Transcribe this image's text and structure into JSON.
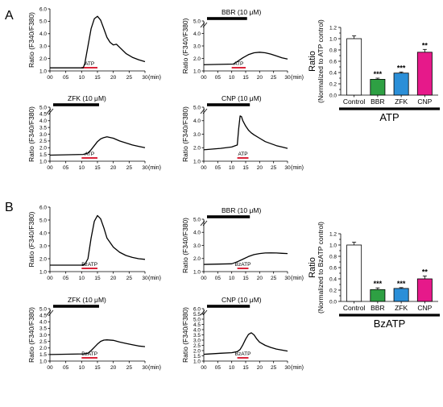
{
  "panel_labels": [
    "A",
    "B"
  ],
  "colors": {
    "control": "#ffffff",
    "BBR": "#2ea043",
    "ZFK": "#2b8fd8",
    "CNP": "#e6198a",
    "stim": "#d9253a",
    "drug": "#000000"
  },
  "chart_data": [
    {
      "type": "line",
      "panel": "A",
      "pos": 0,
      "ylabel": "Ratio (F340/F380)",
      "xunit": "(min)",
      "yticks": [
        "1.0",
        "2.0",
        "3.0",
        "4.0",
        "5.0",
        "6.0"
      ],
      "ylim": [
        1.0,
        6.0
      ],
      "xticks": [
        "00",
        "05",
        "10",
        "15",
        "20",
        "25",
        "30"
      ],
      "xlim": [
        0,
        30
      ],
      "drug_label": "",
      "stim_label": "ATP",
      "stim_range": [
        10,
        15
      ],
      "x": [
        0,
        10.5,
        11,
        12,
        13,
        14,
        15,
        16,
        17,
        18,
        19,
        20,
        21,
        22,
        24,
        26,
        28,
        30
      ],
      "y": [
        1.25,
        1.25,
        1.6,
        3.0,
        4.4,
        5.2,
        5.4,
        5.1,
        4.4,
        3.7,
        3.3,
        3.1,
        3.15,
        2.9,
        2.4,
        2.1,
        1.9,
        1.75
      ]
    },
    {
      "type": "line",
      "panel": "A",
      "pos": 1,
      "ylabel": "Ratio (F340/F380)",
      "xunit": "(min)",
      "yticks": [
        "1.0",
        "2.0",
        "3.0",
        "4.0",
        "5.0"
      ],
      "ylim": [
        1.0,
        5.0
      ],
      "xticks": [
        "00",
        "05",
        "10",
        "15",
        "20",
        "25",
        "30"
      ],
      "xlim": [
        0,
        30
      ],
      "drug_label": "BBR (10 μM)",
      "stim_label": "ATP",
      "stim_range": [
        10,
        15
      ],
      "x": [
        0,
        10.5,
        12,
        14,
        16,
        18,
        20,
        22,
        24,
        26,
        28,
        30
      ],
      "y": [
        1.5,
        1.55,
        1.75,
        2.05,
        2.3,
        2.45,
        2.5,
        2.45,
        2.35,
        2.2,
        2.05,
        1.95
      ]
    },
    {
      "type": "line",
      "panel": "A",
      "pos": 2,
      "ylabel": "Ratio (F340/F380)",
      "xunit": "(min)",
      "yticks": [
        "1.0",
        "1.5",
        "2.0",
        "2.5",
        "3.0",
        "3.5",
        "4.0",
        "4.5",
        "5.0"
      ],
      "ylim": [
        1.0,
        5.0
      ],
      "xticks": [
        "00",
        "05",
        "10",
        "15",
        "20",
        "25",
        "30"
      ],
      "xlim": [
        0,
        30
      ],
      "drug_label": "ZFK (10 μM)",
      "stim_label": "ATP",
      "stim_range": [
        10,
        15
      ],
      "x": [
        0,
        10.5,
        12,
        13,
        14,
        15,
        16,
        17,
        18,
        20,
        22,
        24,
        26,
        28,
        30
      ],
      "y": [
        1.45,
        1.5,
        1.6,
        1.85,
        2.15,
        2.45,
        2.65,
        2.75,
        2.8,
        2.7,
        2.5,
        2.35,
        2.2,
        2.1,
        2.0
      ]
    },
    {
      "type": "line",
      "panel": "A",
      "pos": 3,
      "ylabel": "Ratio (F340/F380)",
      "xunit": "(min)",
      "yticks": [
        "1.0",
        "2.0",
        "3.0",
        "4.0",
        "5.0"
      ],
      "ylim": [
        1.0,
        5.0
      ],
      "xticks": [
        "00",
        "05",
        "10",
        "15",
        "20",
        "25",
        "30"
      ],
      "xlim": [
        0,
        30
      ],
      "drug_label": "CNP (10 μM)",
      "stim_label": "ATP",
      "stim_range": [
        12,
        16
      ],
      "x": [
        0,
        6,
        10,
        12,
        12.5,
        13,
        13.5,
        14,
        15,
        16,
        17,
        18,
        20,
        22,
        24,
        26,
        28,
        30
      ],
      "y": [
        1.85,
        1.95,
        2.05,
        2.2,
        3.4,
        4.35,
        4.3,
        4.0,
        3.6,
        3.3,
        3.1,
        2.95,
        2.7,
        2.45,
        2.3,
        2.15,
        2.05,
        1.95
      ]
    },
    {
      "type": "bar",
      "panel": "A",
      "pos": 4,
      "categories": [
        "Control",
        "BBR",
        "ZFK",
        "CNP"
      ],
      "values": [
        1.0,
        0.28,
        0.39,
        0.76
      ],
      "errors": [
        0.05,
        0.02,
        0.02,
        0.05
      ],
      "significance": [
        "",
        "***",
        "***",
        "**"
      ],
      "ylabel": "Ratio",
      "ylabel2": "(Normalized to ATP control)",
      "yticks": [
        "0.0",
        "0.1",
        "0.2",
        "0.3",
        "0.4",
        "0.5",
        "0.6",
        "0.7",
        "0.8",
        "0.9",
        "1.0",
        "1.1",
        "1.2"
      ],
      "ylim": [
        0,
        1.2
      ],
      "group_label": "ATP"
    },
    {
      "type": "line",
      "panel": "B",
      "pos": 0,
      "ylabel": "Ratio (F340/F380)",
      "xunit": "(min)",
      "yticks": [
        "1.0",
        "2.0",
        "3.0",
        "4.0",
        "5.0",
        "6.0"
      ],
      "ylim": [
        1.0,
        6.0
      ],
      "xticks": [
        "00",
        "05",
        "10",
        "15",
        "20",
        "25",
        "30"
      ],
      "xlim": [
        0,
        30
      ],
      "drug_label": "",
      "stim_label": "BzATP",
      "stim_range": [
        10,
        15
      ],
      "x": [
        0,
        10,
        11,
        12,
        13,
        14,
        15,
        16,
        17,
        18,
        20,
        22,
        24,
        26,
        28,
        30
      ],
      "y": [
        1.5,
        1.5,
        1.55,
        2.0,
        3.6,
        4.9,
        5.35,
        5.1,
        4.4,
        3.6,
        2.9,
        2.5,
        2.25,
        2.1,
        2.0,
        1.95
      ]
    },
    {
      "type": "line",
      "panel": "B",
      "pos": 1,
      "ylabel": "Ratio (F340/F380)",
      "xunit": "(min)",
      "yticks": [
        "1.0",
        "2.0",
        "3.0",
        "4.0",
        "5.0"
      ],
      "ylim": [
        1.0,
        5.0
      ],
      "xticks": [
        "00",
        "05",
        "10",
        "15",
        "20",
        "25",
        "30"
      ],
      "xlim": [
        0,
        30
      ],
      "drug_label": "BBR (10 μM)",
      "stim_label": "BzATP",
      "stim_range": [
        12,
        16
      ],
      "x": [
        0,
        10,
        12,
        14,
        16,
        18,
        20,
        22,
        24,
        26,
        28,
        30
      ],
      "y": [
        1.55,
        1.6,
        1.75,
        1.95,
        2.15,
        2.3,
        2.38,
        2.42,
        2.43,
        2.42,
        2.4,
        2.38
      ]
    },
    {
      "type": "line",
      "panel": "B",
      "pos": 2,
      "ylabel": "Ratio (F340/F380)",
      "xunit": "(min)",
      "yticks": [
        "1.0",
        "1.5",
        "2.0",
        "2.5",
        "3.0",
        "3.5",
        "4.0",
        "4.5",
        "5.0"
      ],
      "ylim": [
        1.0,
        5.0
      ],
      "xticks": [
        "00",
        "05",
        "10",
        "15",
        "20",
        "25",
        "30"
      ],
      "xlim": [
        0,
        30
      ],
      "drug_label": "ZFK (10 μM)",
      "stim_label": "BzATP",
      "stim_range": [
        10,
        15
      ],
      "x": [
        0,
        10.5,
        12,
        13,
        14,
        15,
        16,
        17,
        18,
        20,
        22,
        24,
        26,
        28,
        30
      ],
      "y": [
        1.5,
        1.55,
        1.6,
        1.8,
        2.05,
        2.3,
        2.5,
        2.6,
        2.62,
        2.58,
        2.45,
        2.35,
        2.25,
        2.15,
        2.1
      ]
    },
    {
      "type": "line",
      "panel": "B",
      "pos": 3,
      "ylabel": "Ratio (F340/F380)",
      "xunit": "(min)",
      "yticks": [
        "1.0",
        "1.5",
        "2.0",
        "2.5",
        "3.0",
        "3.5",
        "4.0",
        "4.5",
        "5.0",
        "5.5",
        "6.0"
      ],
      "ylim": [
        1.0,
        6.0
      ],
      "xticks": [
        "00",
        "05",
        "10",
        "15",
        "20",
        "25",
        "30"
      ],
      "xlim": [
        0,
        30
      ],
      "drug_label": "CNP (10 μM)",
      "stim_label": "BzATP",
      "stim_range": [
        12,
        16
      ],
      "x": [
        0,
        6,
        10,
        12,
        13,
        14,
        15,
        16,
        17,
        18,
        19,
        20,
        22,
        24,
        26,
        28,
        30
      ],
      "y": [
        1.65,
        1.75,
        1.8,
        1.9,
        2.1,
        2.55,
        3.1,
        3.55,
        3.7,
        3.5,
        3.1,
        2.8,
        2.5,
        2.3,
        2.15,
        2.05,
        1.95
      ]
    },
    {
      "type": "bar",
      "panel": "B",
      "pos": 4,
      "categories": [
        "Control",
        "BBR",
        "ZFK",
        "CNP"
      ],
      "values": [
        1.0,
        0.21,
        0.23,
        0.4
      ],
      "errors": [
        0.05,
        0.03,
        0.015,
        0.05
      ],
      "significance": [
        "",
        "***",
        "***",
        "**"
      ],
      "ylabel": "Ratio",
      "ylabel2": "(Normalized to BzATP control)",
      "yticks": [
        "0.0",
        "0.1",
        "0.2",
        "0.3",
        "0.4",
        "0.5",
        "0.6",
        "0.7",
        "0.8",
        "0.9",
        "1.0",
        "1.1",
        "1.2"
      ],
      "ylim": [
        0,
        1.2
      ],
      "group_label": "BzATP"
    }
  ]
}
